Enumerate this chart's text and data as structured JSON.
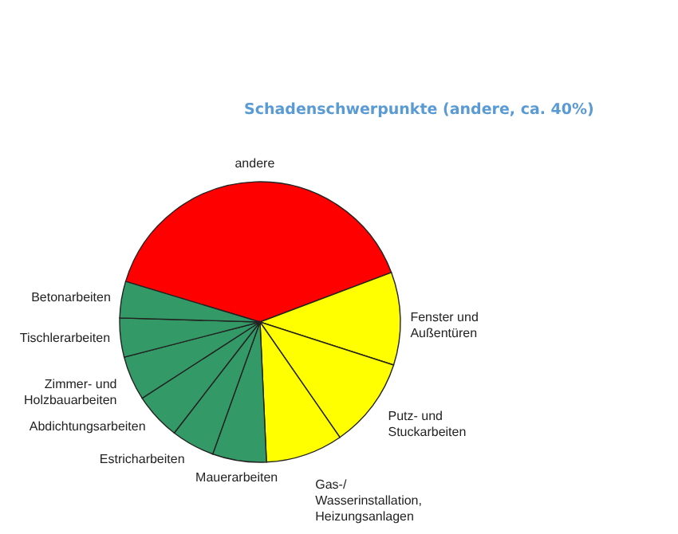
{
  "chart_data": {
    "type": "pie",
    "title": "Schadenschwerpunkte (andere, ca. 40%)",
    "categories": [
      "andere",
      "Fenster und Außentüren",
      "Putz- und Stuckarbeiten",
      "Gas-/ Wasserinstallation, Heizungsanlagen",
      "Mauerarbeiten",
      "Estricharbeiten",
      "Abdichtungsarbeiten",
      "Zimmer- und Holzbauarbeiten",
      "Tischlerarbeiten",
      "Betonarbeiten"
    ],
    "values": [
      39.6,
      10.7,
      10.4,
      8.9,
      6.2,
      5.0,
      5.4,
      5.1,
      4.5,
      4.2
    ],
    "colors": [
      "#ff0000",
      "#ffff00",
      "#ffff00",
      "#ffff00",
      "#339966",
      "#339966",
      "#339966",
      "#339966",
      "#339966",
      "#339966"
    ]
  }
}
